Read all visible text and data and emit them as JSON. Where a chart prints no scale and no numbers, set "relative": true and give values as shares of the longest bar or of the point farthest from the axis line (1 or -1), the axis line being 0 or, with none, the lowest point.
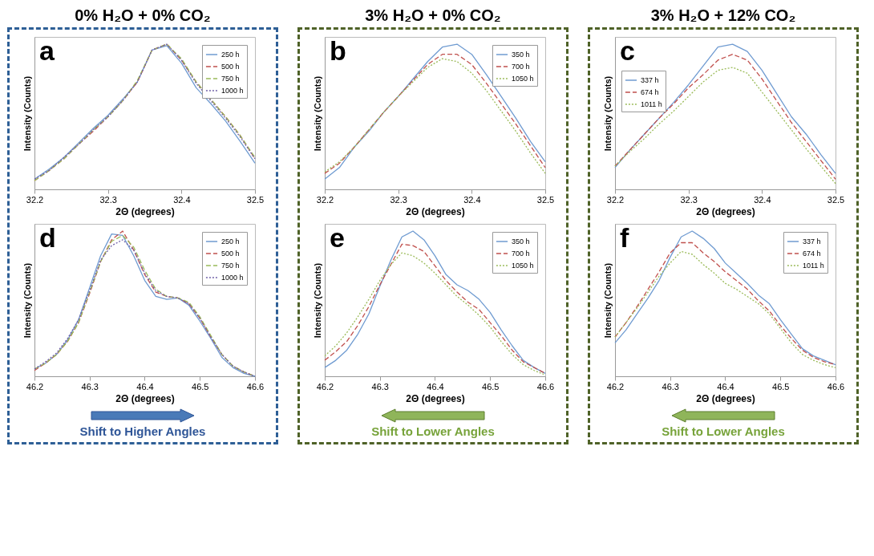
{
  "chart_data": [
    {
      "type": "line",
      "title": "0% H₂O + 0% CO₂",
      "annotations": [
        "a"
      ],
      "xlabel": "2Θ (degrees)",
      "ylabel": "Intensity (Counts)",
      "relative": true,
      "xlim": [
        32.2,
        32.5
      ],
      "xticks": [
        32.2,
        32.3,
        32.4,
        32.5
      ],
      "legend": "top right",
      "grid": false,
      "x": [
        32.2,
        32.22,
        32.24,
        32.26,
        32.28,
        32.3,
        32.32,
        32.34,
        32.36,
        32.38,
        32.4,
        32.42,
        32.44,
        32.46,
        32.48,
        32.5
      ],
      "series": [
        {
          "name": "250 h",
          "color": "#6f9bd1",
          "line_style": "solid",
          "values": [
            0.07,
            0.14,
            0.22,
            0.32,
            0.42,
            0.51,
            0.62,
            0.74,
            0.96,
            0.99,
            0.87,
            0.7,
            0.59,
            0.47,
            0.33,
            0.18
          ]
        },
        {
          "name": "500 h",
          "color": "#c0504d",
          "line_style": "dashed",
          "values": [
            0.06,
            0.13,
            0.21,
            0.31,
            0.4,
            0.5,
            0.61,
            0.74,
            0.96,
            1.0,
            0.89,
            0.74,
            0.62,
            0.5,
            0.37,
            0.21
          ]
        },
        {
          "name": "750 h",
          "color": "#9bbb59",
          "line_style": "dashed",
          "values": [
            0.06,
            0.13,
            0.21,
            0.31,
            0.41,
            0.5,
            0.61,
            0.75,
            0.96,
            1.0,
            0.9,
            0.74,
            0.62,
            0.5,
            0.37,
            0.22
          ]
        },
        {
          "name": "1000 h",
          "color": "#7060a8",
          "line_style": "dotted",
          "values": [
            0.07,
            0.13,
            0.22,
            0.31,
            0.41,
            0.5,
            0.61,
            0.74,
            0.96,
            1.0,
            0.89,
            0.73,
            0.61,
            0.49,
            0.36,
            0.21
          ]
        }
      ]
    },
    {
      "type": "line",
      "title": "3% H₂O + 0% CO₂",
      "annotations": [
        "b"
      ],
      "xlabel": "2Θ (degrees)",
      "ylabel": "Intensity (Counts)",
      "relative": true,
      "xlim": [
        32.2,
        32.5
      ],
      "xticks": [
        32.2,
        32.3,
        32.4,
        32.5
      ],
      "legend": "top right",
      "grid": false,
      "x": [
        32.2,
        32.22,
        32.24,
        32.26,
        32.28,
        32.3,
        32.32,
        32.34,
        32.36,
        32.38,
        32.4,
        32.42,
        32.44,
        32.46,
        32.48,
        32.5
      ],
      "series": [
        {
          "name": "350 h",
          "color": "#6f9bd1",
          "line_style": "solid",
          "values": [
            0.07,
            0.15,
            0.29,
            0.4,
            0.53,
            0.64,
            0.76,
            0.88,
            0.98,
            1.0,
            0.93,
            0.79,
            0.64,
            0.49,
            0.33,
            0.19
          ]
        },
        {
          "name": "700 h",
          "color": "#c0504d",
          "line_style": "dashed",
          "values": [
            0.11,
            0.18,
            0.29,
            0.41,
            0.53,
            0.64,
            0.75,
            0.86,
            0.93,
            0.93,
            0.86,
            0.73,
            0.59,
            0.45,
            0.3,
            0.15
          ]
        },
        {
          "name": "1050 h",
          "color": "#9bbb59",
          "line_style": "dotted",
          "values": [
            0.12,
            0.19,
            0.29,
            0.41,
            0.53,
            0.64,
            0.74,
            0.84,
            0.9,
            0.88,
            0.8,
            0.68,
            0.54,
            0.4,
            0.25,
            0.11
          ]
        }
      ]
    },
    {
      "type": "line",
      "title": "3% H₂O + 12% CO₂",
      "annotations": [
        "c"
      ],
      "xlabel": "2Θ (degrees)",
      "ylabel": "Intensity (Counts)",
      "relative": true,
      "xlim": [
        32.2,
        32.5
      ],
      "xticks": [
        32.2,
        32.3,
        32.4,
        32.5
      ],
      "legend": "top left",
      "grid": false,
      "x": [
        32.2,
        32.22,
        32.24,
        32.26,
        32.28,
        32.3,
        32.32,
        32.34,
        32.36,
        32.38,
        32.4,
        32.42,
        32.44,
        32.46,
        32.48,
        32.5
      ],
      "series": [
        {
          "name": "337 h",
          "color": "#6f9bd1",
          "line_style": "solid",
          "values": [
            0.15,
            0.27,
            0.38,
            0.49,
            0.6,
            0.72,
            0.85,
            0.98,
            1.0,
            0.95,
            0.82,
            0.66,
            0.5,
            0.38,
            0.24,
            0.11
          ]
        },
        {
          "name": "674 h",
          "color": "#c0504d",
          "line_style": "dashed",
          "values": [
            0.16,
            0.27,
            0.38,
            0.49,
            0.59,
            0.7,
            0.79,
            0.89,
            0.93,
            0.89,
            0.76,
            0.61,
            0.46,
            0.33,
            0.2,
            0.07
          ]
        },
        {
          "name": "1011 h",
          "color": "#9bbb59",
          "line_style": "dotted",
          "values": [
            0.16,
            0.26,
            0.35,
            0.45,
            0.54,
            0.64,
            0.74,
            0.82,
            0.84,
            0.8,
            0.67,
            0.54,
            0.41,
            0.28,
            0.16,
            0.04
          ]
        }
      ]
    },
    {
      "type": "line",
      "annotations": [
        "d",
        "Shift to Higher Angles"
      ],
      "xlabel": "2Θ (degrees)",
      "ylabel": "Intensity (Counts)",
      "relative": true,
      "xlim": [
        46.2,
        46.6
      ],
      "xticks": [
        46.2,
        46.3,
        46.4,
        46.5,
        46.6
      ],
      "legend": "top right",
      "grid": false,
      "x": [
        46.2,
        46.22,
        46.24,
        46.26,
        46.28,
        46.3,
        46.32,
        46.34,
        46.36,
        46.38,
        46.4,
        46.42,
        46.44,
        46.46,
        46.48,
        46.5,
        46.52,
        46.54,
        46.56,
        46.58,
        46.6
      ],
      "series": [
        {
          "name": "250 h",
          "color": "#6f9bd1",
          "line_style": "solid",
          "values": [
            0.05,
            0.09,
            0.15,
            0.25,
            0.39,
            0.61,
            0.83,
            0.98,
            0.97,
            0.83,
            0.66,
            0.55,
            0.53,
            0.54,
            0.49,
            0.38,
            0.26,
            0.13,
            0.06,
            0.02,
            0.0
          ]
        },
        {
          "name": "500 h",
          "color": "#c0504d",
          "line_style": "dashed",
          "values": [
            0.04,
            0.09,
            0.15,
            0.24,
            0.37,
            0.57,
            0.79,
            0.94,
            1.0,
            0.87,
            0.7,
            0.58,
            0.55,
            0.54,
            0.5,
            0.4,
            0.27,
            0.15,
            0.07,
            0.03,
            0.0
          ]
        },
        {
          "name": "750 h",
          "color": "#9bbb59",
          "line_style": "dashed",
          "values": [
            0.05,
            0.09,
            0.15,
            0.24,
            0.37,
            0.58,
            0.79,
            0.93,
            0.97,
            0.89,
            0.73,
            0.6,
            0.55,
            0.54,
            0.51,
            0.41,
            0.28,
            0.15,
            0.07,
            0.03,
            0.0
          ]
        },
        {
          "name": "1000 h",
          "color": "#7060a8",
          "line_style": "dotted",
          "values": [
            0.05,
            0.1,
            0.16,
            0.26,
            0.39,
            0.59,
            0.8,
            0.9,
            0.94,
            0.87,
            0.71,
            0.59,
            0.55,
            0.54,
            0.5,
            0.4,
            0.27,
            0.15,
            0.07,
            0.03,
            0.0
          ]
        }
      ]
    },
    {
      "type": "line",
      "annotations": [
        "e",
        "Shift to Lower Angles"
      ],
      "xlabel": "2Θ (degrees)",
      "ylabel": "Intensity (Counts)",
      "relative": true,
      "xlim": [
        46.2,
        46.6
      ],
      "xticks": [
        46.2,
        46.3,
        46.4,
        46.5,
        46.6
      ],
      "legend": "top right",
      "grid": false,
      "x": [
        46.2,
        46.22,
        46.24,
        46.26,
        46.28,
        46.3,
        46.32,
        46.34,
        46.36,
        46.38,
        46.4,
        46.42,
        46.44,
        46.46,
        46.48,
        46.5,
        46.52,
        46.54,
        46.56,
        46.58,
        46.6
      ],
      "series": [
        {
          "name": "350 h",
          "color": "#6f9bd1",
          "line_style": "solid",
          "values": [
            0.06,
            0.11,
            0.18,
            0.29,
            0.43,
            0.62,
            0.8,
            0.96,
            1.0,
            0.94,
            0.83,
            0.7,
            0.63,
            0.59,
            0.53,
            0.44,
            0.32,
            0.21,
            0.11,
            0.06,
            0.02
          ]
        },
        {
          "name": "700 h",
          "color": "#c0504d",
          "line_style": "dashed",
          "values": [
            0.11,
            0.17,
            0.24,
            0.35,
            0.48,
            0.63,
            0.77,
            0.91,
            0.9,
            0.86,
            0.76,
            0.66,
            0.58,
            0.51,
            0.46,
            0.37,
            0.28,
            0.18,
            0.1,
            0.06,
            0.02
          ]
        },
        {
          "name": "1050 h",
          "color": "#9bbb59",
          "line_style": "dotted",
          "values": [
            0.14,
            0.21,
            0.3,
            0.41,
            0.53,
            0.66,
            0.77,
            0.85,
            0.83,
            0.78,
            0.71,
            0.63,
            0.55,
            0.49,
            0.42,
            0.34,
            0.24,
            0.15,
            0.08,
            0.04,
            0.01
          ]
        }
      ]
    },
    {
      "type": "line",
      "annotations": [
        "f",
        "Shift to Lower Angles"
      ],
      "xlabel": "2Θ (degrees)",
      "ylabel": "Intensity (Counts)",
      "relative": true,
      "xlim": [
        46.2,
        46.6
      ],
      "xticks": [
        46.2,
        46.3,
        46.4,
        46.5,
        46.6
      ],
      "legend": "top right",
      "grid": false,
      "x": [
        46.2,
        46.22,
        46.24,
        46.26,
        46.28,
        46.3,
        46.32,
        46.34,
        46.36,
        46.38,
        46.4,
        46.42,
        46.44,
        46.46,
        46.48,
        46.5,
        46.52,
        46.54,
        46.56,
        46.58,
        46.6
      ],
      "series": [
        {
          "name": "337 h",
          "color": "#6f9bd1",
          "line_style": "solid",
          "values": [
            0.23,
            0.32,
            0.43,
            0.54,
            0.66,
            0.82,
            0.96,
            1.0,
            0.95,
            0.88,
            0.78,
            0.71,
            0.64,
            0.56,
            0.5,
            0.39,
            0.29,
            0.19,
            0.14,
            0.11,
            0.08
          ]
        },
        {
          "name": "674 h",
          "color": "#c0504d",
          "line_style": "dashed",
          "values": [
            0.27,
            0.37,
            0.48,
            0.6,
            0.72,
            0.85,
            0.92,
            0.92,
            0.85,
            0.79,
            0.72,
            0.66,
            0.6,
            0.52,
            0.45,
            0.35,
            0.26,
            0.18,
            0.13,
            0.1,
            0.08
          ]
        },
        {
          "name": "1011 h",
          "color": "#9bbb59",
          "line_style": "dotted",
          "values": [
            0.27,
            0.37,
            0.47,
            0.58,
            0.69,
            0.78,
            0.86,
            0.84,
            0.77,
            0.71,
            0.64,
            0.6,
            0.55,
            0.5,
            0.43,
            0.33,
            0.23,
            0.15,
            0.11,
            0.08,
            0.06
          ]
        }
      ]
    }
  ]
}
